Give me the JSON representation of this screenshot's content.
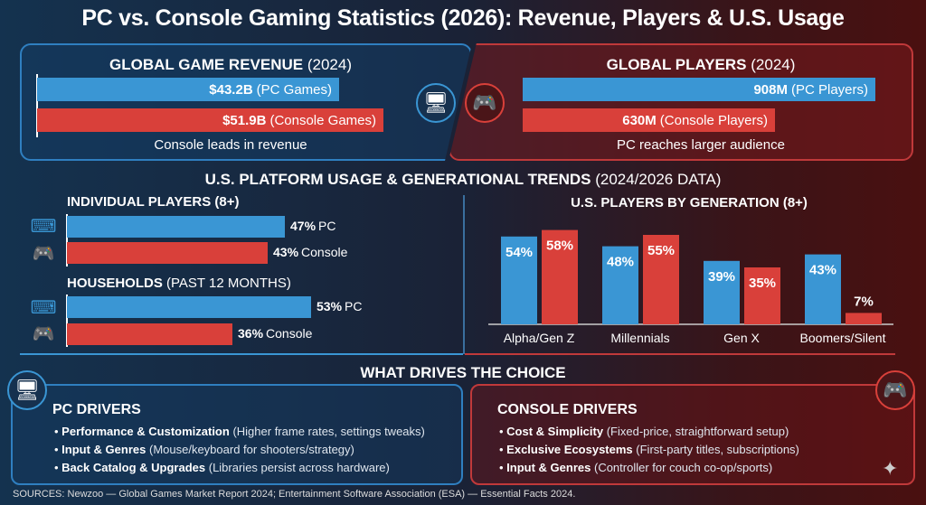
{
  "title": "PC vs. Console Gaming Statistics (2026): Revenue, Players & U.S. Usage",
  "colors": {
    "pc": "#3a96d4",
    "console": "#d9403a"
  },
  "revenue": {
    "heading_bold": "GLOBAL GAME REVENUE",
    "heading_year": "(2024)",
    "pc_value": "$43.2B",
    "pc_label": "(PC Games)",
    "console_value": "$51.9B",
    "console_label": "(Console Games)",
    "caption": "Console leads in revenue",
    "icon": "desktop-pc-icon"
  },
  "players": {
    "heading_bold": "GLOBAL PLAYERS",
    "heading_year": "(2024)",
    "pc_value": "908M",
    "pc_label": "(PC Players)",
    "console_value": "630M",
    "console_label": "(Console Players)",
    "caption": "PC reaches larger audience",
    "icon": "console-gamepad-icon"
  },
  "us_section": {
    "heading_bold": "U.S. PLATFORM USAGE & GENERATIONAL TRENDS",
    "heading_note": "(2024/2026 DATA)"
  },
  "individual": {
    "heading": "INDIVIDUAL PLAYERS (8+)",
    "pc_value": "47%",
    "pc_label": "PC",
    "console_value": "43%",
    "console_label": "Console"
  },
  "households": {
    "heading_bold": "HOUSEHOLDS",
    "heading_note": "(PAST 12 MONTHS)",
    "pc_value": "53%",
    "pc_label": "PC",
    "console_value": "36%",
    "console_label": "Console"
  },
  "chart_data": [
    {
      "type": "bar",
      "title": "GLOBAL GAME REVENUE (2024)",
      "categories": [
        "PC Games",
        "Console Games"
      ],
      "values": [
        43.2,
        51.9
      ],
      "unit": "$B"
    },
    {
      "type": "bar",
      "title": "GLOBAL PLAYERS (2024)",
      "categories": [
        "PC Players",
        "Console Players"
      ],
      "values": [
        908,
        630
      ],
      "unit": "M"
    },
    {
      "type": "bar",
      "title": "INDIVIDUAL PLAYERS (8+)",
      "categories": [
        "PC",
        "Console"
      ],
      "values": [
        47,
        43
      ],
      "unit": "%"
    },
    {
      "type": "bar",
      "title": "HOUSEHOLDS (PAST 12 MONTHS)",
      "categories": [
        "PC",
        "Console"
      ],
      "values": [
        53,
        36
      ],
      "unit": "%"
    },
    {
      "type": "bar",
      "title": "U.S. PLAYERS BY GENERATION (8+)",
      "categories": [
        "Alpha/Gen Z",
        "Millennials",
        "Gen X",
        "Boomers/Silent"
      ],
      "series": [
        {
          "values": [
            54,
            48,
            39,
            43
          ],
          "labels": [
            "54%",
            "48%",
            "39%",
            "43%"
          ]
        },
        {
          "values": [
            58,
            55,
            35,
            7
          ],
          "labels": [
            "58%",
            "55%",
            "35%",
            "7%"
          ]
        }
      ],
      "ylim": [
        0,
        60
      ],
      "grid": false
    }
  ],
  "drivers": {
    "heading": "WHAT DRIVES THE CHOICE",
    "pc": {
      "title": "PC DRIVERS",
      "items": [
        {
          "bold": "Performance & Customization",
          "rest": "(Higher frame rates, settings tweaks)"
        },
        {
          "bold": "Input & Genres",
          "rest": "(Mouse/keyboard for shooters/strategy)"
        },
        {
          "bold": "Back Catalog & Upgrades",
          "rest": "(Libraries persist across hardware)"
        }
      ]
    },
    "console": {
      "title": "CONSOLE DRIVERS",
      "items": [
        {
          "bold": "Cost & Simplicity",
          "rest": "(Fixed-price, straightforward setup)"
        },
        {
          "bold": "Exclusive Ecosystems",
          "rest": "(First-party titles, subscriptions)"
        },
        {
          "bold": "Input & Genres",
          "rest": "(Controller for couch co-op/sports)"
        }
      ]
    }
  },
  "sources": "SOURCES: Newzoo — Global Games Market Report 2024; Entertainment Software Association (ESA) — Essential Facts 2024."
}
